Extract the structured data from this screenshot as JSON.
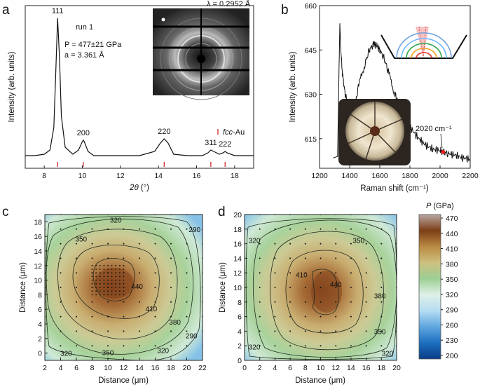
{
  "panels": {
    "a": "a",
    "b": "b",
    "c": "c",
    "d": "d"
  },
  "chart_data": [
    {
      "panel": "a",
      "type": "line",
      "xlabel_symbol": "2θ",
      "xlabel_unit": "(°)",
      "ylabel": "Intensity (arb. units)",
      "xlim": [
        7,
        19
      ],
      "xticks": [
        8,
        10,
        12,
        14,
        16,
        18
      ],
      "annotations": {
        "run": "run 1",
        "pressure": "P = 477±21 GPa",
        "lattice": "a = 3.361 Å",
        "wavelength": "λ = 0.2952 Å",
        "legend": "fcc-Au"
      },
      "peaks": [
        {
          "label": "111",
          "x": 8.7
        },
        {
          "label": "200",
          "x": 10.05
        },
        {
          "label": "220",
          "x": 14.3
        },
        {
          "label": "311",
          "x": 16.75
        },
        {
          "label": "222",
          "x": 17.5
        }
      ],
      "reference_positions": [
        8.7,
        10.05,
        14.3,
        16.75,
        17.5
      ],
      "series": [
        {
          "x": [
            7,
            7.5,
            8,
            8.3,
            8.5,
            8.6,
            8.7,
            8.8,
            8.9,
            9.1,
            9.5,
            9.8,
            10,
            10.05,
            10.1,
            10.3,
            10.6,
            11,
            12,
            13,
            13.8,
            14.1,
            14.3,
            14.5,
            14.8,
            15.5,
            16.3,
            16.6,
            16.75,
            16.9,
            17.2,
            17.4,
            17.5,
            17.6,
            18,
            19
          ],
          "y": [
            0.02,
            0.02,
            0.03,
            0.06,
            0.22,
            0.6,
            1.0,
            0.72,
            0.3,
            0.08,
            0.03,
            0.06,
            0.12,
            0.13,
            0.12,
            0.05,
            0.02,
            0.02,
            0.02,
            0.02,
            0.05,
            0.11,
            0.14,
            0.11,
            0.03,
            0.02,
            0.02,
            0.04,
            0.06,
            0.05,
            0.03,
            0.04,
            0.05,
            0.04,
            0.02,
            0.02
          ]
        }
      ]
    },
    {
      "panel": "b",
      "type": "line",
      "xlabel": "Raman shift (cm⁻¹)",
      "ylabel": "Intensity (arb. units)",
      "xlim": [
        1200,
        2200
      ],
      "ylim": [
        605,
        660
      ],
      "xticks": [
        1200,
        1400,
        1600,
        1800,
        2000,
        2200
      ],
      "yticks": [
        615,
        630,
        645,
        660
      ],
      "annotation": "2020 cm⁻¹",
      "marker": {
        "x": 2020,
        "y": 610.5
      },
      "series": [
        {
          "x": [
            1290,
            1320,
            1330,
            1335,
            1340,
            1350,
            1370,
            1400,
            1430,
            1460,
            1500,
            1530,
            1560,
            1580,
            1600,
            1630,
            1660,
            1700,
            1750,
            1800,
            1850,
            1900,
            1950,
            2000,
            2020,
            2050,
            2100,
            2150,
            2200
          ],
          "y": [
            608.5,
            609,
            640,
            654,
            646,
            638,
            630,
            624,
            625,
            633,
            640,
            645,
            647,
            646.5,
            645,
            642,
            637,
            630,
            624,
            619,
            615.5,
            613,
            611.5,
            611,
            610.5,
            610,
            609.5,
            608.5,
            608
          ]
        }
      ]
    },
    {
      "panel": "c",
      "type": "heatmap",
      "xlabel": "Distance (μm)",
      "ylabel": "Distance (μm)",
      "xlim": [
        2,
        22
      ],
      "ylim": [
        -1,
        19
      ],
      "xticks": [
        2,
        4,
        6,
        8,
        10,
        12,
        14,
        16,
        18,
        20,
        22
      ],
      "yticks": [
        0,
        2,
        4,
        6,
        8,
        10,
        12,
        14,
        16,
        18
      ],
      "contour_labels": [
        {
          "text": "320",
          "x": 11,
          "y": 18.2
        },
        {
          "text": "290",
          "x": 21,
          "y": 16.9
        },
        {
          "text": "350",
          "x": 6.6,
          "y": 15.6
        },
        {
          "text": "440",
          "x": 13.7,
          "y": 9.1
        },
        {
          "text": "410",
          "x": 15.5,
          "y": 6.0
        },
        {
          "text": "380",
          "x": 18.5,
          "y": 4.2
        },
        {
          "text": "290",
          "x": 20.6,
          "y": 2.3
        },
        {
          "text": "320",
          "x": 4.7,
          "y": -0.1
        },
        {
          "text": "350",
          "x": 10.0,
          "y": 0.0
        },
        {
          "text": "320",
          "x": 17.0,
          "y": 0.3
        }
      ]
    },
    {
      "panel": "d",
      "type": "heatmap",
      "xlabel": "Distance (μm)",
      "ylabel": "Distance (μm)",
      "xlim": [
        0,
        20
      ],
      "ylim": [
        0,
        20
      ],
      "xticks": [
        0,
        2,
        4,
        6,
        8,
        10,
        12,
        14,
        16,
        18,
        20
      ],
      "yticks": [
        0,
        2,
        4,
        6,
        8,
        10,
        12,
        14,
        16,
        18,
        20
      ],
      "contour_labels": [
        {
          "text": "320",
          "x": 1.3,
          "y": 16.4
        },
        {
          "text": "350",
          "x": 15.0,
          "y": 16.4
        },
        {
          "text": "410",
          "x": 7.5,
          "y": 11.7
        },
        {
          "text": "440",
          "x": 12.0,
          "y": 10.4
        },
        {
          "text": "380",
          "x": 17.8,
          "y": 8.8
        },
        {
          "text": "350",
          "x": 17.8,
          "y": 3.9
        },
        {
          "text": "320",
          "x": 1.3,
          "y": 1.8
        },
        {
          "text": "320",
          "x": 18.8,
          "y": 0.9
        }
      ]
    },
    {
      "panel": "colorbar",
      "type": "colorbar",
      "title_symbol": "P",
      "title_unit": "(GPa)",
      "ticks": [
        200,
        230,
        260,
        290,
        320,
        350,
        380,
        410,
        440,
        470
      ],
      "colors": [
        "#0a3c86",
        "#1d6fc0",
        "#5fa6e0",
        "#b5dcf2",
        "#dff0e8",
        "#9ccf94",
        "#cdc080",
        "#b98a42",
        "#7c3e16",
        "#b9a7a3"
      ]
    }
  ]
}
